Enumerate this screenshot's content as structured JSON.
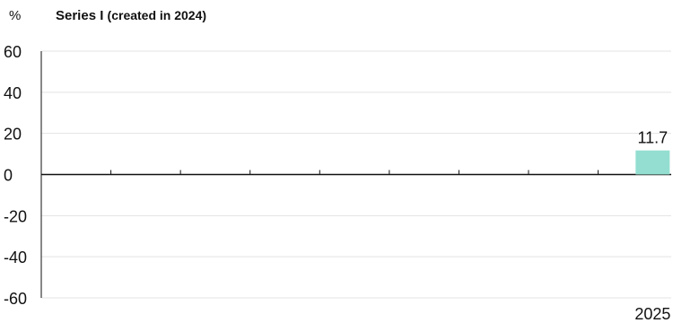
{
  "chart_data": {
    "type": "bar",
    "unit_label": "%",
    "title": "Series I",
    "subtitle": "(created in 2024)",
    "categories": [
      "",
      "",
      "",
      "",
      "",
      "",
      "",
      "",
      "2025"
    ],
    "values": [
      null,
      null,
      null,
      null,
      null,
      null,
      null,
      null,
      11.7
    ],
    "data_labels": [
      "",
      "",
      "",
      "",
      "",
      "",
      "",
      "",
      "11.7"
    ],
    "ylim": [
      -60,
      60
    ],
    "yticks": [
      60,
      40,
      20,
      0,
      -20,
      -40,
      -60
    ],
    "grid": true,
    "bar_color": "#93ded0",
    "grid_color": "#e3e3e3",
    "axis_color": "#111111"
  }
}
